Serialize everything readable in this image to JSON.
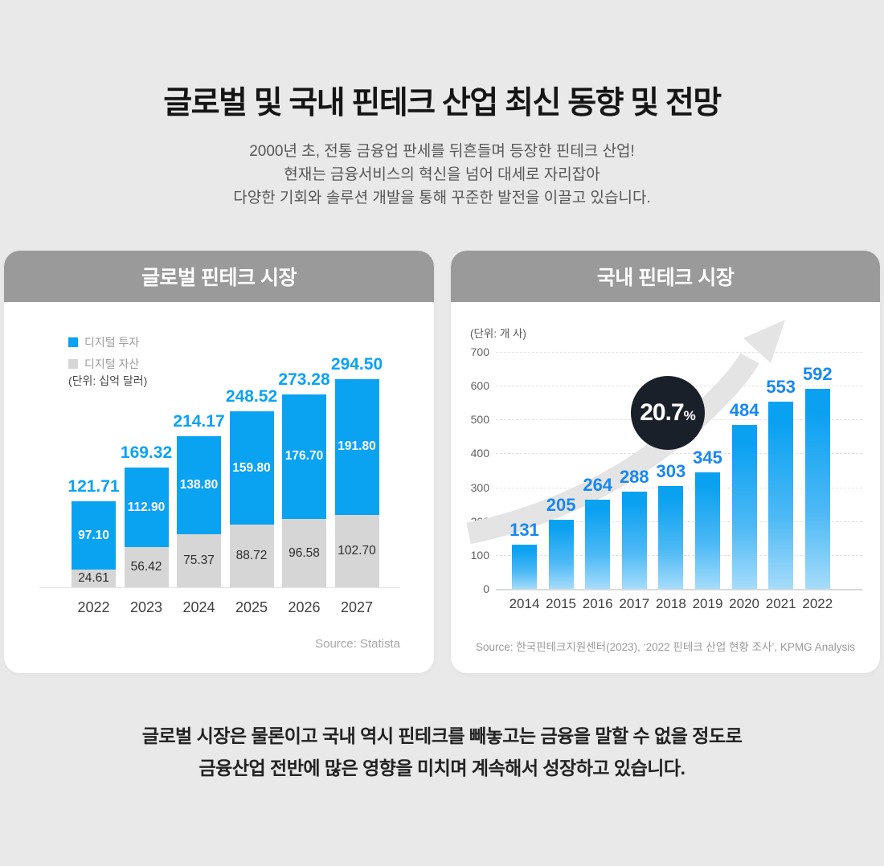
{
  "header": {
    "title": "글로벌 및 국내 핀테크 산업 최신 동향 및 전망",
    "subtitle_lines": [
      "2000년 초, 전통 금융업 판세를 뒤흔들며 등장한 핀테크 산업!",
      "현재는 금융서비스의 혁신을 넘어 대세로 자리잡아",
      "다양한 기회와 솔루션 개발을 통해 꾸준한 발전을 이끌고 있습니다."
    ]
  },
  "chart_data": [
    {
      "id": "global-fintech-market",
      "type": "bar",
      "stacked": true,
      "title": "글로벌 핀테크 시장",
      "unit_label": "(단위: 십억 달러)",
      "categories": [
        "2022",
        "2023",
        "2024",
        "2025",
        "2026",
        "2027"
      ],
      "series": [
        {
          "name": "디지털 자산",
          "color": "#d6d6d6",
          "values": [
            24.61,
            56.42,
            75.37,
            88.72,
            96.58,
            102.7
          ]
        },
        {
          "name": "디지털 투자",
          "color": "#0aa3f2",
          "values": [
            97.1,
            112.9,
            138.8,
            159.8,
            176.7,
            191.8
          ]
        }
      ],
      "totals": [
        121.71,
        169.32,
        214.17,
        248.52,
        273.28,
        294.5
      ],
      "legend_position": "top-left",
      "grid": false,
      "source": "Source: Statista"
    },
    {
      "id": "domestic-fintech-market",
      "type": "bar",
      "title": "국내 핀테크 시장",
      "unit_label": "(단위: 개 사)",
      "categories": [
        "2014",
        "2015",
        "2016",
        "2017",
        "2018",
        "2019",
        "2020",
        "2021",
        "2022"
      ],
      "values": [
        131,
        205,
        264,
        288,
        303,
        345,
        484,
        553,
        592
      ],
      "ylabel": "",
      "ylim": [
        0,
        700
      ],
      "ytick_step": 100,
      "grid": true,
      "annotation": {
        "value": "20.7",
        "suffix": "%"
      },
      "source": "Source: 한국핀테크지원센터(2023), ‘2022 핀테크 산업 현황 조사’, KPMG Analysis"
    }
  ],
  "footer": {
    "lines": [
      "글로벌 시장은 물론이고 국내 역시 핀테크를 빼놓고는 금융을 말할 수 없을 정도로",
      "금융산업 전반에 많은 영향을 미치며 계속해서 성장하고 있습니다."
    ]
  },
  "colors": {
    "accent_blue": "#0aa3f2",
    "value_label_blue": "#1888ef",
    "bar_gray": "#d6d6d6",
    "panel_header_gray": "#9a9a9a",
    "badge_dark": "#1a202a",
    "arrow_gray": "#e4e4e4",
    "background_gray": "#e9e9e9"
  }
}
